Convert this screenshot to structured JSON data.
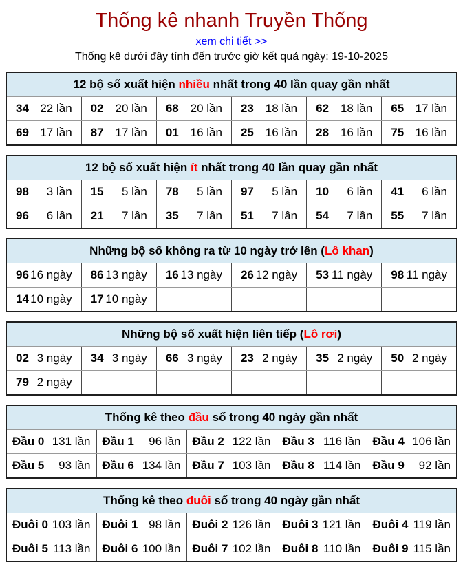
{
  "page": {
    "title": "Thống kê nhanh Truyền Thống",
    "detail_link": "xem chi tiết >>",
    "subtitle": "Thống kê dưới đây tính đến trước giờ kết quả ngày: 19-10-2025"
  },
  "colors": {
    "title_red": "#990000",
    "accent_red": "#ff0000",
    "link_blue": "#0000ff",
    "header_bg": "#d8eaf3"
  },
  "tables": [
    {
      "id": "most-frequent",
      "columns": 6,
      "header": {
        "pre": "12 bộ số xuất hiện ",
        "red": "nhiều",
        "post": " nhất trong 40 lần quay gần nhất"
      },
      "rows": [
        [
          {
            "n": "34",
            "v": "22 lần"
          },
          {
            "n": "02",
            "v": "20 lần"
          },
          {
            "n": "68",
            "v": "20 lần"
          },
          {
            "n": "23",
            "v": "18 lần"
          },
          {
            "n": "62",
            "v": "18 lần"
          },
          {
            "n": "65",
            "v": "17 lần"
          }
        ],
        [
          {
            "n": "69",
            "v": "17 lần"
          },
          {
            "n": "87",
            "v": "17 lần"
          },
          {
            "n": "01",
            "v": "16 lần"
          },
          {
            "n": "25",
            "v": "16 lần"
          },
          {
            "n": "28",
            "v": "16 lần"
          },
          {
            "n": "75",
            "v": "16 lần"
          }
        ]
      ]
    },
    {
      "id": "least-frequent",
      "columns": 6,
      "header": {
        "pre": "12 bộ số xuất hiện ",
        "red": "ít",
        "post": " nhất trong 40 lần quay gần nhất"
      },
      "rows": [
        [
          {
            "n": "98",
            "v": "3 lần"
          },
          {
            "n": "15",
            "v": "5 lần"
          },
          {
            "n": "78",
            "v": "5 lần"
          },
          {
            "n": "97",
            "v": "5 lần"
          },
          {
            "n": "10",
            "v": "6 lần"
          },
          {
            "n": "41",
            "v": "6 lần"
          }
        ],
        [
          {
            "n": "96",
            "v": "6 lần"
          },
          {
            "n": "21",
            "v": "7 lần"
          },
          {
            "n": "35",
            "v": "7 lần"
          },
          {
            "n": "51",
            "v": "7 lần"
          },
          {
            "n": "54",
            "v": "7 lần"
          },
          {
            "n": "55",
            "v": "7 lần"
          }
        ]
      ]
    },
    {
      "id": "lo-khan",
      "columns": 6,
      "header": {
        "pre": "Những bộ số không ra từ 10 ngày trở lên (",
        "red": "Lô khan",
        "post": ")"
      },
      "rows": [
        [
          {
            "n": "96",
            "v": "16 ngày"
          },
          {
            "n": "86",
            "v": "13 ngày"
          },
          {
            "n": "16",
            "v": "13 ngày"
          },
          {
            "n": "26",
            "v": "12 ngày"
          },
          {
            "n": "53",
            "v": "11 ngày"
          },
          {
            "n": "98",
            "v": "11 ngày"
          }
        ],
        [
          {
            "n": "14",
            "v": "10 ngày"
          },
          {
            "n": "17",
            "v": "10 ngày"
          },
          {
            "n": "",
            "v": ""
          },
          {
            "n": "",
            "v": ""
          },
          {
            "n": "",
            "v": ""
          },
          {
            "n": "",
            "v": ""
          }
        ]
      ]
    },
    {
      "id": "lo-roi",
      "columns": 6,
      "header": {
        "pre": "Những bộ số xuất hiện liên tiếp (",
        "red": "Lô rơi",
        "post": ")"
      },
      "rows": [
        [
          {
            "n": "02",
            "v": "3 ngày"
          },
          {
            "n": "34",
            "v": "3 ngày"
          },
          {
            "n": "66",
            "v": "3 ngày"
          },
          {
            "n": "23",
            "v": "2 ngày"
          },
          {
            "n": "35",
            "v": "2 ngày"
          },
          {
            "n": "50",
            "v": "2 ngày"
          }
        ],
        [
          {
            "n": "79",
            "v": "2 ngày"
          },
          {
            "n": "",
            "v": ""
          },
          {
            "n": "",
            "v": ""
          },
          {
            "n": "",
            "v": ""
          },
          {
            "n": "",
            "v": ""
          },
          {
            "n": "",
            "v": ""
          }
        ]
      ]
    },
    {
      "id": "dau",
      "columns": 5,
      "header": {
        "pre": "Thống kê theo ",
        "red": "đầu",
        "post": " số trong 40 ngày gần nhất"
      },
      "rows": [
        [
          {
            "n": "Đầu 0",
            "v": "131 lần"
          },
          {
            "n": "Đầu 1",
            "v": "96 lần"
          },
          {
            "n": "Đầu 2",
            "v": "122 lần"
          },
          {
            "n": "Đầu 3",
            "v": "116 lần"
          },
          {
            "n": "Đầu 4",
            "v": "106 lần"
          }
        ],
        [
          {
            "n": "Đầu 5",
            "v": "93 lần"
          },
          {
            "n": "Đầu 6",
            "v": "134 lần"
          },
          {
            "n": "Đầu 7",
            "v": "103 lần"
          },
          {
            "n": "Đầu 8",
            "v": "114 lần"
          },
          {
            "n": "Đầu 9",
            "v": "92 lần"
          }
        ]
      ]
    },
    {
      "id": "duoi",
      "columns": 5,
      "header": {
        "pre": "Thống kê theo ",
        "red": "đuôi",
        "post": " số trong 40 ngày gần nhất"
      },
      "rows": [
        [
          {
            "n": "Đuôi 0",
            "v": "103 lần"
          },
          {
            "n": "Đuôi 1",
            "v": "98 lần"
          },
          {
            "n": "Đuôi 2",
            "v": "126 lần"
          },
          {
            "n": "Đuôi 3",
            "v": "121 lần"
          },
          {
            "n": "Đuôi 4",
            "v": "119 lần"
          }
        ],
        [
          {
            "n": "Đuôi 5",
            "v": "113 lần"
          },
          {
            "n": "Đuôi 6",
            "v": "100 lần"
          },
          {
            "n": "Đuôi 7",
            "v": "102 lần"
          },
          {
            "n": "Đuôi 8",
            "v": "110 lần"
          },
          {
            "n": "Đuôi 9",
            "v": "115 lần"
          }
        ]
      ]
    }
  ]
}
